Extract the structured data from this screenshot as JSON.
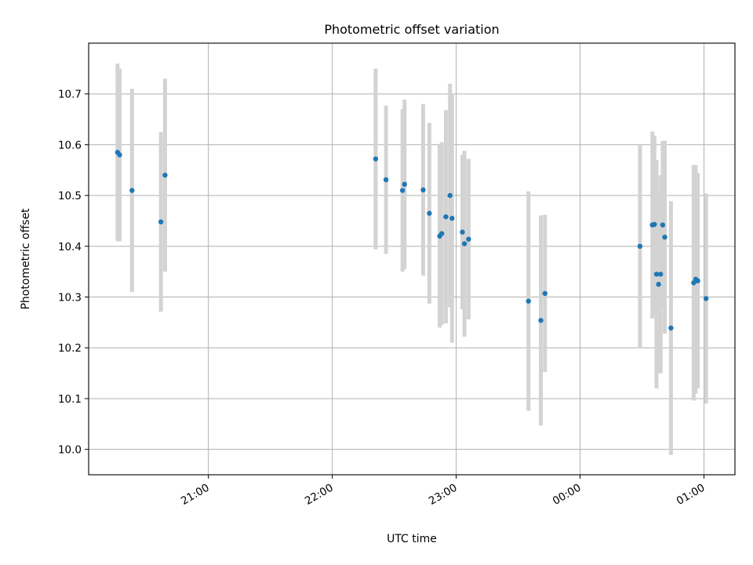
{
  "chart_data": {
    "type": "scatter",
    "title": "Photometric offset variation",
    "xlabel": "UTC time",
    "ylabel": "Photometric offset",
    "xlim": [
      "20:02",
      "01:15"
    ],
    "ylim": [
      9.95,
      10.8
    ],
    "xticks": [
      "21:00",
      "22:00",
      "23:00",
      "00:00",
      "01:00"
    ],
    "yticks": [
      10.0,
      10.1,
      10.2,
      10.3,
      10.4,
      10.5,
      10.6,
      10.7
    ],
    "grid": true,
    "marker_color": "#1f77b4",
    "errorbar_color": "#d3d3d3",
    "series": [
      {
        "points": [
          {
            "x": "20:16",
            "y": 10.585,
            "err": 0.175
          },
          {
            "x": "20:17",
            "y": 10.58,
            "err": 0.17
          },
          {
            "x": "20:23",
            "y": 10.51,
            "err": 0.2
          },
          {
            "x": "20:37",
            "y": 10.448,
            "err": 0.177
          },
          {
            "x": "20:39",
            "y": 10.54,
            "err": 0.19
          },
          {
            "x": "22:21",
            "y": 10.572,
            "err": 0.178
          },
          {
            "x": "22:26",
            "y": 10.531,
            "err": 0.146
          },
          {
            "x": "22:34",
            "y": 10.51,
            "err": 0.16
          },
          {
            "x": "22:35",
            "y": 10.522,
            "err": 0.167
          },
          {
            "x": "22:44",
            "y": 10.511,
            "err": 0.169
          },
          {
            "x": "22:47",
            "y": 10.465,
            "err": 0.178
          },
          {
            "x": "22:52",
            "y": 10.42,
            "err": 0.18
          },
          {
            "x": "22:53",
            "y": 10.425,
            "err": 0.18
          },
          {
            "x": "22:55",
            "y": 10.458,
            "err": 0.21
          },
          {
            "x": "22:57",
            "y": 10.5,
            "err": 0.22
          },
          {
            "x": "22:58",
            "y": 10.455,
            "err": 0.245
          },
          {
            "x": "23:03",
            "y": 10.428,
            "err": 0.152
          },
          {
            "x": "23:04",
            "y": 10.405,
            "err": 0.183
          },
          {
            "x": "23:06",
            "y": 10.414,
            "err": 0.158
          },
          {
            "x": "23:35",
            "y": 10.292,
            "err": 0.216
          },
          {
            "x": "23:41",
            "y": 10.254,
            "err": 0.207
          },
          {
            "x": "23:43",
            "y": 10.307,
            "err": 0.155
          },
          {
            "x": "00:29",
            "y": 10.4,
            "err": 0.2
          },
          {
            "x": "00:35",
            "y": 10.442,
            "err": 0.184
          },
          {
            "x": "00:36",
            "y": 10.443,
            "err": 0.175
          },
          {
            "x": "00:37",
            "y": 10.345,
            "err": 0.225
          },
          {
            "x": "00:38",
            "y": 10.325,
            "err": 0.175
          },
          {
            "x": "00:39",
            "y": 10.345,
            "err": 0.195
          },
          {
            "x": "00:40",
            "y": 10.442,
            "err": 0.165
          },
          {
            "x": "00:41",
            "y": 10.418,
            "err": 0.19
          },
          {
            "x": "00:44",
            "y": 10.239,
            "err": 0.25
          },
          {
            "x": "00:55",
            "y": 10.328,
            "err": 0.232
          },
          {
            "x": "00:56",
            "y": 10.335,
            "err": 0.225
          },
          {
            "x": "00:57",
            "y": 10.332,
            "err": 0.212
          },
          {
            "x": "01:01",
            "y": 10.297,
            "err": 0.207
          }
        ]
      }
    ]
  }
}
